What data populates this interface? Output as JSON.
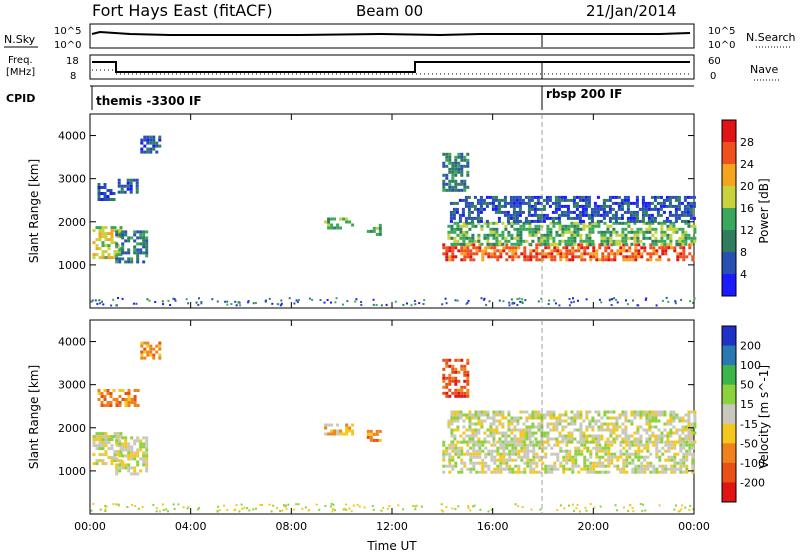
{
  "header": {
    "station": "Fort Hays East (fitACF)",
    "beam": "Beam 00",
    "date": "21/Jan/2014"
  },
  "strip": {
    "nsky_label": "N.Sky",
    "nsearch_label": "N.Search",
    "freq_label_1": "Freq.",
    "freq_label_2": "[MHz]",
    "nave_label": "Nave",
    "cpid_label": "CPID",
    "left_ticks_top": [
      "10^5",
      "10^0"
    ],
    "right_ticks_top": [
      "10^5",
      "10^0"
    ],
    "left_ticks_freq": [
      "18",
      "8"
    ],
    "right_ticks_nave": [
      "60",
      "0"
    ],
    "cpid_segments": [
      {
        "label": "themis -3300 IF",
        "start_hour": 0
      },
      {
        "label": "rbsp 200 IF",
        "start_hour": 18
      }
    ]
  },
  "chart_data": [
    {
      "type": "heatmap",
      "panel": "power",
      "ylabel": "Slant Range [km]",
      "xlabel": "Time UT",
      "xlim_hours": [
        0,
        24
      ],
      "ylim_km": [
        0,
        4500
      ],
      "yticks": [
        "1000",
        "2000",
        "3000",
        "4000"
      ],
      "xticks": [
        "00:00",
        "04:00",
        "08:00",
        "12:00",
        "16:00",
        "20:00",
        "00:00"
      ],
      "colorbar": {
        "label": "Power [dB]",
        "ticks": [
          "4",
          "8",
          "12",
          "16",
          "20",
          "24",
          "28"
        ],
        "colors": [
          "#1a1aff",
          "#2850b4",
          "#2e7d5e",
          "#3aa85a",
          "#c8d23c",
          "#f5a41e",
          "#f0501e",
          "#e01414"
        ]
      },
      "echo_regions": [
        {
          "t0": 0.1,
          "t1": 1.2,
          "r0": 1200,
          "r1": 1900,
          "level": 4
        },
        {
          "t0": 0.3,
          "t1": 1.0,
          "r0": 2500,
          "r1": 2900,
          "level": 1
        },
        {
          "t0": 1.0,
          "t1": 2.2,
          "r0": 1100,
          "r1": 1800,
          "level": 2
        },
        {
          "t0": 1.1,
          "t1": 1.9,
          "r0": 2700,
          "r1": 3000,
          "level": 1
        },
        {
          "t0": 2.0,
          "t1": 2.8,
          "r0": 3600,
          "r1": 4000,
          "level": 1
        },
        {
          "t0": 9.3,
          "t1": 10.4,
          "r0": 1850,
          "r1": 2100,
          "level": 3
        },
        {
          "t0": 11.0,
          "t1": 11.5,
          "r0": 1700,
          "r1": 1950,
          "level": 3
        },
        {
          "t0": 14.0,
          "t1": 24.0,
          "r0": 1100,
          "r1": 1500,
          "level": 6
        },
        {
          "t0": 14.2,
          "t1": 24.0,
          "r0": 1500,
          "r1": 2000,
          "level": 3
        },
        {
          "t0": 14.3,
          "t1": 24.0,
          "r0": 2000,
          "r1": 2600,
          "level": 1
        },
        {
          "t0": 14.0,
          "t1": 15.0,
          "r0": 2700,
          "r1": 3600,
          "level": 2
        }
      ]
    },
    {
      "type": "heatmap",
      "panel": "velocity",
      "ylabel": "Slant Range [km]",
      "xlabel": "Time UT",
      "xlim_hours": [
        0,
        24
      ],
      "ylim_km": [
        0,
        4500
      ],
      "yticks": [
        "1000",
        "2000",
        "3000",
        "4000"
      ],
      "xticks": [
        "00:00",
        "04:00",
        "08:00",
        "12:00",
        "16:00",
        "20:00",
        "00:00"
      ],
      "colorbar": {
        "label": "Velocity [m s^-1]",
        "ticks": [
          "200",
          "100",
          "50",
          "15",
          "-15",
          "-50",
          "-100",
          "-200"
        ],
        "colors": [
          "#1e32c8",
          "#2878b4",
          "#3cb44a",
          "#8cd23c",
          "#c8c8be",
          "#f5c81e",
          "#f0821e",
          "#e85014",
          "#e01414"
        ]
      },
      "echo_regions": [
        {
          "t0": 0.1,
          "t1": 1.2,
          "r0": 1200,
          "r1": 1900,
          "level": 4
        },
        {
          "t0": 1.0,
          "t1": 2.2,
          "r0": 900,
          "r1": 1800,
          "level": 4
        },
        {
          "t0": 0.3,
          "t1": 1.9,
          "r0": 2500,
          "r1": 2900,
          "level": 6
        },
        {
          "t0": 2.0,
          "t1": 2.8,
          "r0": 3600,
          "r1": 4000,
          "level": 6
        },
        {
          "t0": 9.3,
          "t1": 10.4,
          "r0": 1850,
          "r1": 2100,
          "level": 5
        },
        {
          "t0": 11.0,
          "t1": 11.5,
          "r0": 1700,
          "r1": 1950,
          "level": 6
        },
        {
          "t0": 14.0,
          "t1": 24.0,
          "r0": 1000,
          "r1": 1700,
          "level": 4
        },
        {
          "t0": 14.2,
          "t1": 24.0,
          "r0": 1700,
          "r1": 2400,
          "level": 4
        },
        {
          "t0": 14.0,
          "t1": 15.0,
          "r0": 2700,
          "r1": 3600,
          "level": 7
        }
      ]
    }
  ]
}
